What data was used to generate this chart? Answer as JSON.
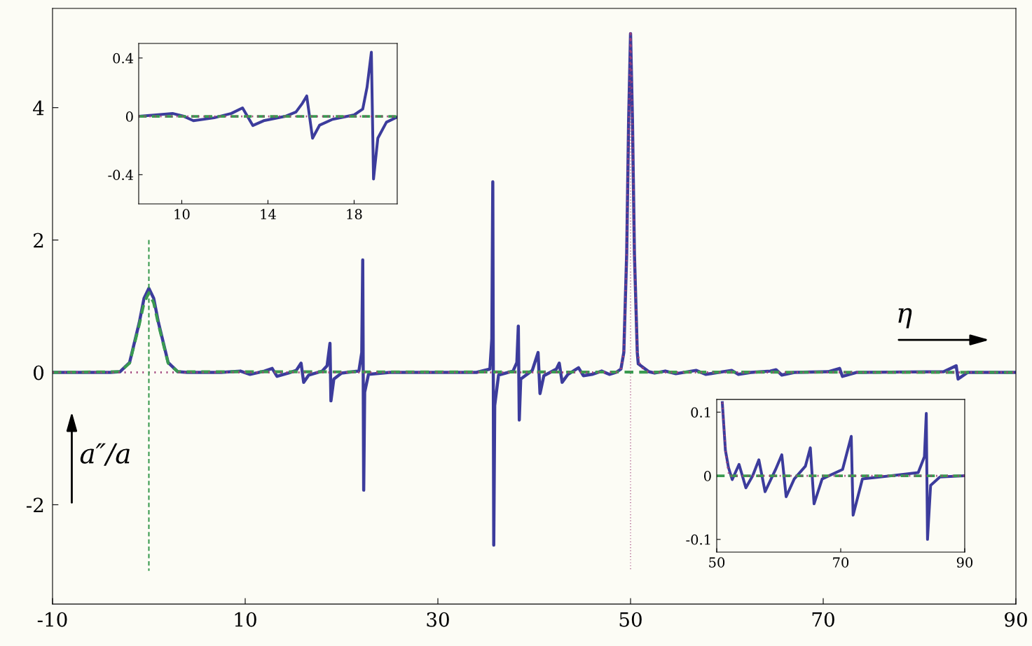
{
  "chart_data": [
    {
      "type": "line",
      "xlim": [
        -10,
        90
      ],
      "ylim": [
        -3.5,
        5.5
      ],
      "xticks": [
        -10,
        10,
        30,
        50,
        70,
        90
      ],
      "yticks": [
        -2,
        0,
        2,
        4
      ],
      "annotations": [
        "a″/a",
        "η"
      ],
      "series": [
        {
          "color": "#3c3c9c",
          "line_style": "solid",
          "x": [
            -10,
            -4,
            -3,
            -2,
            -1,
            -0.5,
            0,
            0.5,
            1,
            2,
            3,
            4,
            6,
            7.5,
            9.5,
            10.5,
            12,
            12.8,
            13.3,
            14.5,
            15.3,
            15.8,
            16.07,
            16.6,
            18,
            18.5,
            18.8,
            18.9,
            19.2,
            20,
            21.8,
            22.1,
            22.2,
            22.3,
            22.4,
            22.8,
            25,
            34,
            35.4,
            35.6,
            35.7,
            35.8,
            35.9,
            36.3,
            37.8,
            38.2,
            38.35,
            38.45,
            38.6,
            39.8,
            40.4,
            40.6,
            41,
            42.3,
            42.6,
            42.9,
            43.5,
            44.6,
            45.1,
            46,
            47,
            47.8,
            48.5,
            49,
            49.3,
            49.6,
            49.8,
            50,
            50.2,
            50.4,
            50.7,
            50.8,
            51.9,
            52.5,
            53.6,
            54.7,
            56.8,
            57.8,
            60.5,
            61.2,
            62.5,
            64.5,
            65.1,
            65.7,
            67,
            70.5,
            71.7,
            72.0,
            73.5,
            82.5,
            83.8,
            84.0,
            85,
            90
          ],
          "values": [
            0,
            0,
            0.01,
            0.15,
            0.75,
            1.12,
            1.27,
            1.12,
            0.75,
            0.15,
            0.01,
            0,
            0,
            0,
            0.02,
            -0.03,
            0.02,
            0.06,
            -0.06,
            -0.01,
            0.03,
            0.14,
            -0.15,
            -0.04,
            0.02,
            0.1,
            0.44,
            -0.43,
            -0.1,
            -0.01,
            0.02,
            0.3,
            1.7,
            -1.78,
            -0.3,
            -0.03,
            0,
            0,
            0.05,
            0.5,
            2.88,
            -2.61,
            -0.5,
            -0.04,
            0.02,
            0.15,
            0.7,
            -0.72,
            -0.1,
            0.03,
            0.3,
            -0.32,
            -0.05,
            0.05,
            0.14,
            -0.15,
            -0.03,
            0.07,
            -0.05,
            -0.03,
            0.02,
            -0.03,
            0,
            0.05,
            0.3,
            1.8,
            3.8,
            5.12,
            3.8,
            1.8,
            0.3,
            0.13,
            0.01,
            -0.01,
            0.02,
            -0.02,
            0.03,
            -0.03,
            0.03,
            -0.03,
            0,
            0.02,
            0.04,
            -0.04,
            0,
            0.01,
            0.06,
            -0.06,
            0,
            0.01,
            0.1,
            -0.1,
            0,
            0
          ]
        },
        {
          "color": "#3a9a50",
          "line_style": "dashed",
          "x": [
            -10,
            -3,
            -2,
            -1,
            -0.5,
            0,
            0.5,
            1,
            2,
            3,
            90
          ],
          "values": [
            0,
            0.01,
            0.14,
            0.72,
            1.05,
            1.2,
            1.05,
            0.72,
            0.14,
            0.01,
            0
          ]
        },
        {
          "color": "#a0407a",
          "line_style": "dotted",
          "x": [
            -10,
            48.5,
            49,
            49.3,
            49.6,
            49.8,
            50,
            50.2,
            50.4,
            50.7,
            51,
            51.5,
            52,
            90
          ],
          "values": [
            0,
            0,
            0.05,
            0.3,
            1.8,
            3.8,
            5.12,
            3.8,
            1.8,
            0.3,
            0.1,
            0.03,
            0,
            0
          ]
        },
        {
          "color": "#3a9a50",
          "line_style": "dashed",
          "x": [
            0,
            0
          ],
          "values": [
            2.0,
            -3.0
          ]
        },
        {
          "color": "#a0407a",
          "line_style": "dotted",
          "x": [
            50,
            50
          ],
          "values": [
            5.1,
            -3.0
          ]
        }
      ]
    },
    {
      "type": "line",
      "xlim": [
        8,
        20
      ],
      "ylim": [
        -0.6,
        0.5
      ],
      "xticks": [
        10,
        14,
        18
      ],
      "yticks": [
        -0.4,
        0,
        0.4
      ],
      "series": [
        {
          "color": "#3c3c9c",
          "line_style": "solid",
          "x": [
            8,
            8.8,
            9.57,
            10.1,
            10.54,
            11.5,
            12.3,
            12.82,
            13.3,
            13.8,
            14.8,
            15.3,
            15.6,
            15.8,
            16.07,
            16.4,
            17,
            18,
            18.4,
            18.6,
            18.8,
            18.9,
            19.1,
            19.5,
            20
          ],
          "values": [
            0,
            0.01,
            0.02,
            0,
            -0.03,
            -0.01,
            0.02,
            0.058,
            -0.063,
            -0.03,
            0,
            0.03,
            0.09,
            0.14,
            -0.15,
            -0.06,
            -0.02,
            0.01,
            0.05,
            0.2,
            0.44,
            -0.43,
            -0.15,
            -0.04,
            -0.005
          ]
        },
        {
          "color": "#3a9a50",
          "line_style": "dashed",
          "x": [
            8,
            20
          ],
          "values": [
            0,
            0
          ]
        },
        {
          "color": "#a0407a",
          "line_style": "dotted",
          "x": [
            8,
            20
          ],
          "values": [
            0,
            0
          ]
        }
      ]
    },
    {
      "type": "line",
      "xlim": [
        50,
        90
      ],
      "ylim": [
        -0.12,
        0.12
      ],
      "xticks": [
        50,
        70,
        90
      ],
      "yticks": [
        -0.1,
        0,
        0.1
      ],
      "series": [
        {
          "color": "#3c3c9c",
          "line_style": "solid",
          "x": [
            50.9,
            51.4,
            51.9,
            52.5,
            53.6,
            54.7,
            55.8,
            56.8,
            57.8,
            59.5,
            60.5,
            61.2,
            62.5,
            64.3,
            65.1,
            65.7,
            67,
            70.3,
            71.7,
            72.0,
            73.5,
            82.5,
            83.5,
            83.8,
            84.0,
            84.5,
            86,
            90
          ],
          "values": [
            0.115,
            0.04,
            0.013,
            -0.006,
            0.018,
            -0.019,
            0.0,
            0.025,
            -0.025,
            0.01,
            0.033,
            -0.033,
            -0.005,
            0.015,
            0.044,
            -0.044,
            -0.005,
            0.01,
            0.062,
            -0.062,
            -0.005,
            0.005,
            0.03,
            0.098,
            -0.1,
            -0.015,
            -0.002,
            0
          ]
        },
        {
          "color": "#3a9a50",
          "line_style": "dashed",
          "x": [
            50,
            90
          ],
          "values": [
            0,
            0
          ]
        },
        {
          "color": "#a0407a",
          "line_style": "dotted",
          "x": [
            50.9,
            51.5,
            52,
            90
          ],
          "values": [
            0.115,
            0.03,
            0,
            0
          ]
        }
      ]
    }
  ]
}
